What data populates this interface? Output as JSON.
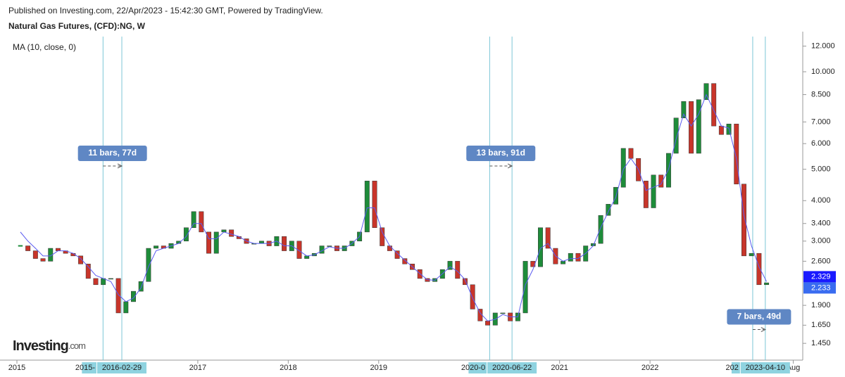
{
  "header": {
    "published": "Published on Investing.com, 22/Apr/2023 - 15:42:30 GMT, Powered by TradingView.",
    "instrument": "Natural Gas Futures, (CFD):NG, W"
  },
  "logo": {
    "text": "Investing",
    "suffix": ".com"
  },
  "chart_data": {
    "type": "candlestick",
    "log_scale": true,
    "x": [
      "2015-01",
      "2015-02",
      "2015-03",
      "2015-04",
      "2015-05",
      "2015-06",
      "2015-07",
      "2015-08",
      "2015-09",
      "2015-10",
      "2015-11",
      "2015-12",
      "2016-01",
      "2016-02",
      "2016-03",
      "2016-04",
      "2016-05",
      "2016-06",
      "2016-07",
      "2016-08",
      "2016-09",
      "2016-10",
      "2016-11",
      "2016-12",
      "2017-01",
      "2017-02",
      "2017-03",
      "2017-04",
      "2017-05",
      "2017-06",
      "2017-07",
      "2017-08",
      "2017-09",
      "2017-10",
      "2017-11",
      "2017-12",
      "2018-01",
      "2018-02",
      "2018-03",
      "2018-04",
      "2018-05",
      "2018-06",
      "2018-07",
      "2018-08",
      "2018-09",
      "2018-10",
      "2018-11",
      "2018-12",
      "2019-01",
      "2019-02",
      "2019-03",
      "2019-04",
      "2019-05",
      "2019-06",
      "2019-07",
      "2019-08",
      "2019-09",
      "2019-10",
      "2019-11",
      "2019-12",
      "2020-01",
      "2020-02",
      "2020-03",
      "2020-04",
      "2020-05",
      "2020-06",
      "2020-07",
      "2020-08",
      "2020-09",
      "2020-10",
      "2020-11",
      "2020-12",
      "2021-01",
      "2021-02",
      "2021-03",
      "2021-04",
      "2021-05",
      "2021-06",
      "2021-07",
      "2021-08",
      "2021-09",
      "2021-10",
      "2021-11",
      "2021-12",
      "2022-01",
      "2022-02",
      "2022-03",
      "2022-04",
      "2022-05",
      "2022-06",
      "2022-07",
      "2022-08",
      "2022-09",
      "2022-10",
      "2022-11",
      "2022-12",
      "2023-01",
      "2023-02",
      "2023-03",
      "2023-04"
    ],
    "close": [
      2.9,
      2.8,
      2.65,
      2.6,
      2.85,
      2.8,
      2.75,
      2.7,
      2.55,
      2.3,
      2.2,
      2.3,
      2.3,
      1.8,
      1.95,
      2.1,
      2.25,
      2.85,
      2.9,
      2.85,
      2.95,
      3.0,
      3.3,
      3.7,
      3.2,
      2.75,
      3.2,
      3.25,
      3.1,
      3.05,
      2.95,
      2.95,
      3.0,
      2.9,
      3.1,
      2.8,
      3.0,
      2.65,
      2.7,
      2.75,
      2.9,
      2.9,
      2.8,
      2.9,
      3.0,
      3.2,
      4.6,
      3.3,
      2.9,
      2.8,
      2.65,
      2.55,
      2.45,
      2.3,
      2.25,
      2.3,
      2.45,
      2.6,
      2.3,
      2.2,
      1.85,
      1.7,
      1.65,
      1.8,
      1.8,
      1.7,
      1.8,
      2.6,
      2.5,
      3.3,
      2.85,
      2.55,
      2.6,
      2.75,
      2.6,
      2.9,
      2.95,
      3.6,
      3.9,
      4.4,
      5.8,
      5.4,
      4.6,
      3.8,
      4.8,
      4.4,
      5.6,
      7.2,
      8.1,
      5.6,
      8.2,
      9.2,
      6.8,
      6.4,
      6.9,
      4.5,
      2.7,
      2.75,
      2.2,
      2.23
    ],
    "up_color": "#1e8c3a",
    "down_color": "#c8352a",
    "series": [
      {
        "name": "MA (10, close, 0)",
        "color": "#5b5bf0",
        "values": [
          3.2,
          3.0,
          2.85,
          2.7,
          2.7,
          2.8,
          2.8,
          2.75,
          2.65,
          2.5,
          2.35,
          2.3,
          2.25,
          2.05,
          1.95,
          2.0,
          2.15,
          2.5,
          2.8,
          2.85,
          2.9,
          2.95,
          3.1,
          3.4,
          3.4,
          3.05,
          3.05,
          3.2,
          3.15,
          3.1,
          3.0,
          2.95,
          2.95,
          2.95,
          3.0,
          2.9,
          2.9,
          2.8,
          2.7,
          2.72,
          2.8,
          2.88,
          2.85,
          2.85,
          2.95,
          3.1,
          3.8,
          3.8,
          3.2,
          2.9,
          2.75,
          2.62,
          2.5,
          2.38,
          2.28,
          2.27,
          2.38,
          2.5,
          2.42,
          2.28,
          2.0,
          1.8,
          1.7,
          1.72,
          1.78,
          1.75,
          1.75,
          2.2,
          2.45,
          2.85,
          2.95,
          2.7,
          2.6,
          2.65,
          2.65,
          2.75,
          2.9,
          3.3,
          3.7,
          4.1,
          5.0,
          5.4,
          5.0,
          4.3,
          4.4,
          4.5,
          5.0,
          6.2,
          7.4,
          6.8,
          7.4,
          8.5,
          7.6,
          6.8,
          6.7,
          5.4,
          3.6,
          2.9,
          2.5,
          2.25
        ]
      }
    ],
    "xlim": [
      "2014-10-24",
      "2023-09-09"
    ],
    "xticks": [
      {
        "value": "2015-01-01",
        "label": "2015"
      },
      {
        "value": "2017-01-01",
        "label": "2017"
      },
      {
        "value": "2018-01-01",
        "label": "2018"
      },
      {
        "value": "2019-01-01",
        "label": "2019"
      },
      {
        "value": "2021-01-01",
        "label": "2021"
      },
      {
        "value": "2022-01-01",
        "label": "2022"
      },
      {
        "value": "2023-08-01",
        "label": "Aug"
      }
    ],
    "ylim": [
      1.3,
      13.3
    ],
    "yticks": [
      {
        "value": 1.45,
        "label": "1.450"
      },
      {
        "value": 1.65,
        "label": "1.650"
      },
      {
        "value": 1.9,
        "label": "1.900"
      },
      {
        "value": 2.6,
        "label": "2.600"
      },
      {
        "value": 3,
        "label": "3.000"
      },
      {
        "value": 3.4,
        "label": "3.400"
      },
      {
        "value": 4,
        "label": "4.000"
      },
      {
        "value": 5,
        "label": "5.000"
      },
      {
        "value": 6,
        "label": "6.000"
      },
      {
        "value": 7,
        "label": "7.000"
      },
      {
        "value": 8.5,
        "label": "8.500"
      },
      {
        "value": 10,
        "label": "10.000"
      },
      {
        "value": 12,
        "label": "12.000"
      }
    ],
    "price_labels": [
      {
        "value": 2.329,
        "label": "2.329",
        "color": "#1a1aff"
      },
      {
        "value": 2.233,
        "label": "2.233",
        "color": "#3a6cf0"
      }
    ],
    "ranges": [
      {
        "start": "2015-12-14",
        "end": "2016-02-29",
        "start_label": "2015-",
        "end_label": "2016-02-29",
        "label": "11 bars, 77d",
        "label_price": 5.6
      },
      {
        "start": "2020-03-23",
        "end": "2020-06-22",
        "start_label": "2020-0",
        "end_label": "2020-06-22",
        "label": "13 bars, 91d",
        "label_price": 5.6
      },
      {
        "start": "2023-02-20",
        "end": "2023-04-10",
        "start_label": "202",
        "end_label": "2023-04-10",
        "label": "7 bars, 49d",
        "label_price": 1.75
      }
    ]
  }
}
